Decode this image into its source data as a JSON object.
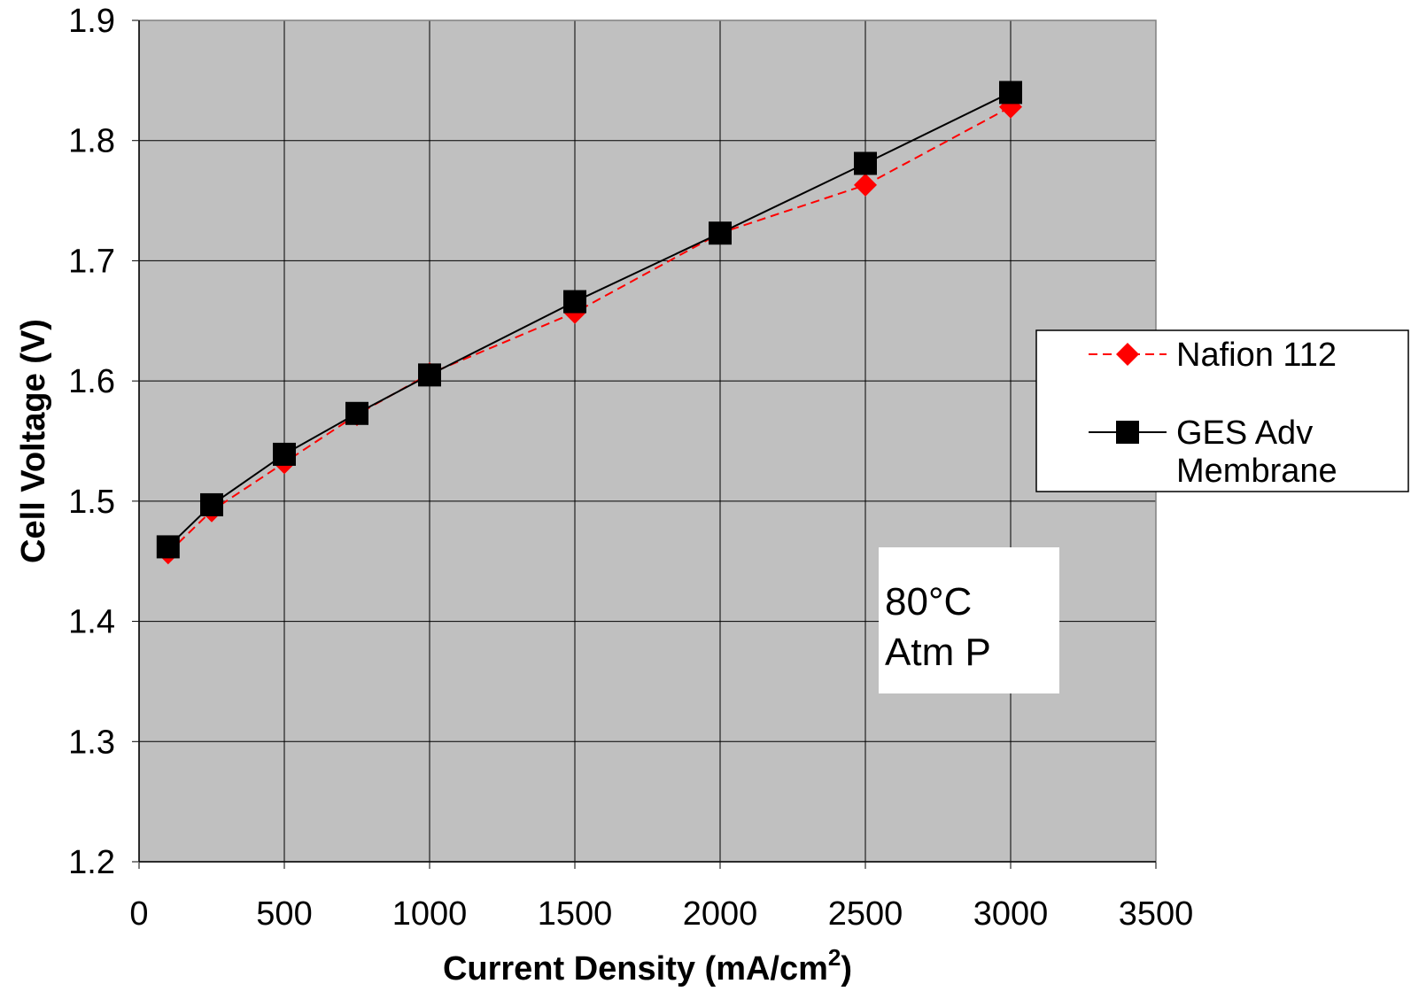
{
  "chart_data": {
    "type": "line",
    "title": "",
    "xlabel": "Current Density (mA/cm",
    "xlabel_superscript": "2",
    "xlabel_suffix": ")",
    "ylabel": "Cell Voltage (V)",
    "xlim": [
      0,
      3500
    ],
    "ylim": [
      1.2,
      1.9
    ],
    "x_ticks": [
      "0",
      "500",
      "1000",
      "1500",
      "2000",
      "2500",
      "3000",
      "3500"
    ],
    "y_ticks": [
      "1.2",
      "1.3",
      "1.4",
      "1.5",
      "1.6",
      "1.7",
      "1.8",
      "1.9"
    ],
    "grid": true,
    "plot_background": "#c0c0c0",
    "legend_position": "right",
    "series": [
      {
        "name": "Nafion 112",
        "color": "#ff0000",
        "line_style": "dashed",
        "marker": "diamond",
        "x": [
          100,
          250,
          500,
          750,
          1000,
          1500,
          2000,
          2500,
          3000
        ],
        "y": [
          1.457,
          1.492,
          1.532,
          1.572,
          1.606,
          1.657,
          1.723,
          1.763,
          1.828
        ]
      },
      {
        "name": "GES Adv Membrane",
        "legend_lines": [
          "GES Adv",
          "Membrane"
        ],
        "color": "#000000",
        "line_style": "solid",
        "marker": "square",
        "x": [
          100,
          250,
          500,
          750,
          1000,
          1500,
          2000,
          2500,
          3000
        ],
        "y": [
          1.462,
          1.497,
          1.539,
          1.573,
          1.605,
          1.666,
          1.723,
          1.781,
          1.84
        ]
      }
    ],
    "annotation": [
      "80°C",
      "Atm P"
    ]
  }
}
